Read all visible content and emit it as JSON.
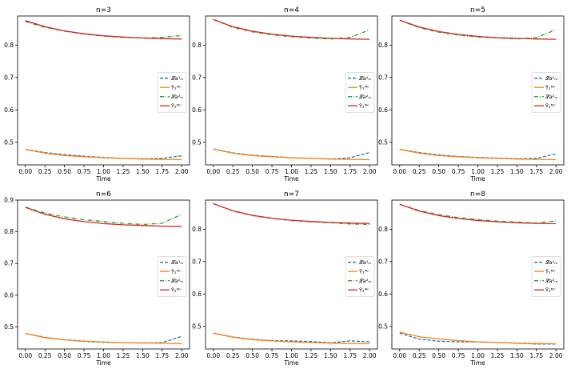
{
  "figure": {
    "colors": {
      "blue": "#1f77b4",
      "orange": "#ff7f0e",
      "green": "#2ca02c",
      "red": "#d62728"
    },
    "x_ticks": [
      0.0,
      0.25,
      0.5,
      0.75,
      1.0,
      1.25,
      1.5,
      1.75,
      2.0
    ],
    "x_tick_labels": [
      "0.00",
      "0.25",
      "0.50",
      "0.75",
      "1.00",
      "1.25",
      "1.50",
      "1.75",
      "2.00"
    ],
    "y_ticks": [
      0.5,
      0.6,
      0.7,
      0.8
    ],
    "y_tick_labels": [
      "0.5",
      "0.6",
      "0.7",
      "0.8"
    ],
    "y_ticks_top_row_6": [
      0.5,
      0.6,
      0.7,
      0.8,
      0.9
    ],
    "y_tick_labels_top_row_6": [
      "0.5",
      "0.6",
      "0.7",
      "0.8",
      "0.9"
    ],
    "xlabel": "Time",
    "legend": [
      {
        "label": "𝓛a¹ₘ",
        "color": "#1f77b4",
        "style": "dashed"
      },
      {
        "label": "Ȳ₁ᴹᶜ",
        "color": "#ff7f0e",
        "style": "solid"
      },
      {
        "label": "𝓛a²ₘ",
        "color": "#2ca02c",
        "style": "dashdot"
      },
      {
        "label": "Ȳ₂ᴹᶜ",
        "color": "#d62728",
        "style": "solid"
      }
    ]
  },
  "chart_data": [
    {
      "type": "line",
      "title": "n=3",
      "xlabel": "Time",
      "ylabel": "",
      "xlim": [
        -0.1,
        2.1
      ],
      "ylim": [
        0.43,
        0.89
      ],
      "x": [
        0.0,
        0.25,
        0.5,
        0.75,
        1.0,
        1.25,
        1.5,
        1.75,
        2.0
      ],
      "series": [
        {
          "name": "𝓛a¹ₘ",
          "values": [
            0.478,
            0.468,
            0.462,
            0.457,
            0.453,
            0.45,
            0.449,
            0.45,
            0.458
          ]
        },
        {
          "name": "Ȳ₁ᴹᶜ",
          "values": [
            0.478,
            0.466,
            0.459,
            0.455,
            0.452,
            0.45,
            0.448,
            0.447,
            0.446
          ]
        },
        {
          "name": "𝓛a²ₘ",
          "values": [
            0.873,
            0.855,
            0.843,
            0.834,
            0.828,
            0.824,
            0.822,
            0.824,
            0.83
          ]
        },
        {
          "name": "Ȳ₂ᴹᶜ",
          "values": [
            0.876,
            0.857,
            0.844,
            0.835,
            0.829,
            0.825,
            0.822,
            0.82,
            0.819
          ]
        }
      ]
    },
    {
      "type": "line",
      "title": "n=4",
      "xlabel": "Time",
      "ylabel": "",
      "xlim": [
        -0.1,
        2.1
      ],
      "ylim": [
        0.43,
        0.89
      ],
      "x": [
        0.0,
        0.25,
        0.5,
        0.75,
        1.0,
        1.25,
        1.5,
        1.75,
        2.0
      ],
      "series": [
        {
          "name": "𝓛a¹ₘ",
          "values": [
            0.479,
            0.467,
            0.46,
            0.456,
            0.452,
            0.45,
            0.448,
            0.452,
            0.468
          ]
        },
        {
          "name": "Ȳ₁ᴹᶜ",
          "values": [
            0.479,
            0.466,
            0.459,
            0.455,
            0.452,
            0.45,
            0.448,
            0.447,
            0.446
          ]
        },
        {
          "name": "𝓛a²ₘ",
          "values": [
            0.879,
            0.855,
            0.841,
            0.832,
            0.826,
            0.822,
            0.819,
            0.824,
            0.847
          ]
        },
        {
          "name": "Ȳ₂ᴹᶜ",
          "values": [
            0.879,
            0.857,
            0.843,
            0.834,
            0.828,
            0.824,
            0.821,
            0.819,
            0.818
          ]
        }
      ]
    },
    {
      "type": "line",
      "title": "n=5",
      "xlabel": "Time",
      "ylabel": "",
      "xlim": [
        -0.1,
        2.1
      ],
      "ylim": [
        0.43,
        0.89
      ],
      "x": [
        0.0,
        0.25,
        0.5,
        0.75,
        1.0,
        1.25,
        1.5,
        1.75,
        2.0
      ],
      "series": [
        {
          "name": "𝓛a¹ₘ",
          "values": [
            0.478,
            0.468,
            0.461,
            0.456,
            0.453,
            0.451,
            0.449,
            0.45,
            0.464
          ]
        },
        {
          "name": "Ȳ₁ᴹᶜ",
          "values": [
            0.478,
            0.466,
            0.459,
            0.455,
            0.452,
            0.45,
            0.448,
            0.447,
            0.446
          ]
        },
        {
          "name": "𝓛a²ₘ",
          "values": [
            0.877,
            0.854,
            0.84,
            0.831,
            0.825,
            0.822,
            0.819,
            0.823,
            0.848
          ]
        },
        {
          "name": "Ȳ₂ᴹᶜ",
          "values": [
            0.877,
            0.856,
            0.842,
            0.833,
            0.827,
            0.823,
            0.821,
            0.819,
            0.818
          ]
        }
      ]
    },
    {
      "type": "line",
      "title": "n=6",
      "xlabel": "Time",
      "ylabel": "",
      "xlim": [
        -0.1,
        2.1
      ],
      "ylim": [
        0.43,
        0.9
      ],
      "x": [
        0.0,
        0.25,
        0.5,
        0.75,
        1.0,
        1.25,
        1.5,
        1.75,
        2.0
      ],
      "series": [
        {
          "name": "𝓛a¹ₘ",
          "values": [
            0.479,
            0.467,
            0.459,
            0.454,
            0.451,
            0.45,
            0.449,
            0.45,
            0.47
          ]
        },
        {
          "name": "Ȳ₁ᴹᶜ",
          "values": [
            0.479,
            0.466,
            0.459,
            0.455,
            0.452,
            0.45,
            0.449,
            0.448,
            0.447
          ]
        },
        {
          "name": "𝓛a²ₘ",
          "values": [
            0.878,
            0.859,
            0.847,
            0.838,
            0.832,
            0.827,
            0.823,
            0.827,
            0.855
          ]
        },
        {
          "name": "Ȳ₂ᴹᶜ",
          "values": [
            0.877,
            0.855,
            0.841,
            0.832,
            0.826,
            0.822,
            0.82,
            0.818,
            0.817
          ]
        }
      ]
    },
    {
      "type": "line",
      "title": "n=7",
      "xlabel": "Time",
      "ylabel": "",
      "xlim": [
        -0.1,
        2.1
      ],
      "ylim": [
        0.43,
        0.89
      ],
      "x": [
        0.0,
        0.25,
        0.5,
        0.75,
        1.0,
        1.25,
        1.5,
        1.75,
        2.0
      ],
      "series": [
        {
          "name": "𝓛a¹ₘ",
          "values": [
            0.479,
            0.467,
            0.46,
            0.456,
            0.455,
            0.453,
            0.449,
            0.455,
            0.452
          ]
        },
        {
          "name": "Ȳ₁ᴹᶜ",
          "values": [
            0.479,
            0.466,
            0.459,
            0.455,
            0.452,
            0.45,
            0.448,
            0.447,
            0.446
          ]
        },
        {
          "name": "𝓛a²ₘ",
          "values": [
            0.879,
            0.856,
            0.842,
            0.833,
            0.827,
            0.823,
            0.82,
            0.816,
            0.815
          ]
        },
        {
          "name": "Ȳ₂ᴹᶜ",
          "values": [
            0.879,
            0.857,
            0.843,
            0.834,
            0.828,
            0.824,
            0.821,
            0.819,
            0.818
          ]
        }
      ]
    },
    {
      "type": "line",
      "title": "n=8",
      "xlabel": "Time",
      "ylabel": "",
      "xlim": [
        -0.1,
        2.1
      ],
      "ylim": [
        0.43,
        0.89
      ],
      "x": [
        0.0,
        0.25,
        0.5,
        0.75,
        1.0,
        1.25,
        1.5,
        1.75,
        2.0
      ],
      "series": [
        {
          "name": "𝓛a¹ₘ",
          "values": [
            0.479,
            0.461,
            0.454,
            0.452,
            0.452,
            0.45,
            0.448,
            0.445,
            0.445
          ]
        },
        {
          "name": "Ȳ₁ᴹᶜ",
          "values": [
            0.482,
            0.468,
            0.461,
            0.456,
            0.452,
            0.45,
            0.448,
            0.447,
            0.446
          ]
        },
        {
          "name": "𝓛a²ₘ",
          "values": [
            0.877,
            0.858,
            0.845,
            0.836,
            0.83,
            0.825,
            0.822,
            0.819,
            0.826
          ]
        },
        {
          "name": "Ȳ₂ᴹᶜ",
          "values": [
            0.877,
            0.856,
            0.842,
            0.833,
            0.827,
            0.823,
            0.82,
            0.818,
            0.817
          ]
        }
      ]
    }
  ]
}
